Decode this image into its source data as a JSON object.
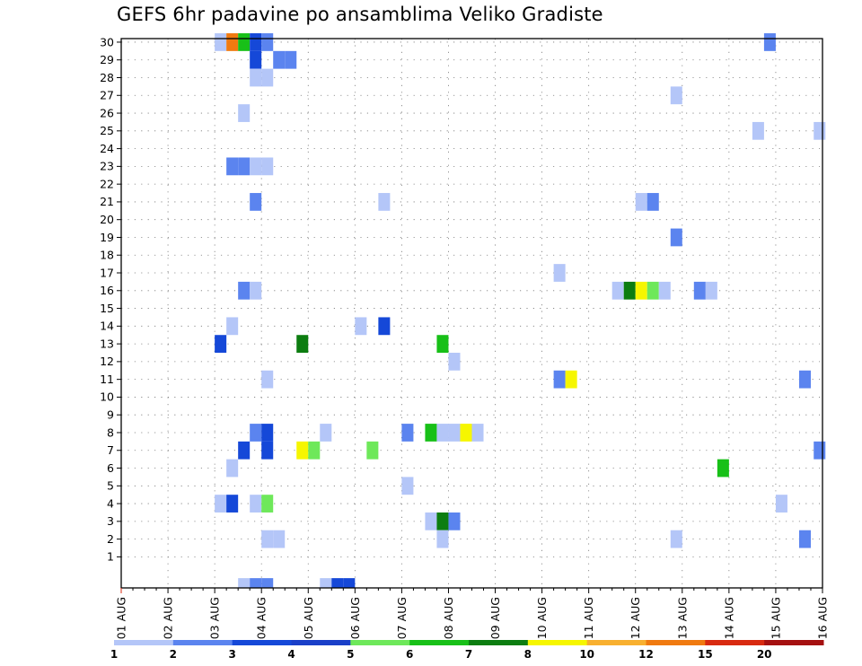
{
  "chart_data": {
    "type": "heatmap",
    "title": "GEFS 6hr padavine po ansamblima Veliko Gradiste",
    "x_labels": [
      "01 AUG",
      "02 AUG",
      "03 AUG",
      "04 AUG",
      "05 AUG",
      "06 AUG",
      "07 AUG",
      "08 AUG",
      "09 AUG",
      "10 AUG",
      "11 AUG",
      "12 AUG",
      "13 AUG",
      "14 AUG",
      "15 AUG",
      "16 AUG"
    ],
    "y_range": [
      1,
      30
    ],
    "x_steps_per_day": 4,
    "grid": true,
    "colorbar": {
      "labels": [
        "1",
        "2",
        "3",
        "4",
        "5",
        "6",
        "7",
        "8",
        "10",
        "12",
        "15",
        "20"
      ],
      "colors": [
        "#b4c6f8",
        "#5b84ef",
        "#1548d8",
        "#1a3fc8",
        "#6ee85a",
        "#18c018",
        "#0c7d10",
        "#f6f600",
        "#f8b030",
        "#f07a10",
        "#d82a10",
        "#a51010",
        "#650808"
      ]
    },
    "cells": [
      {
        "x": 8.5,
        "y": 30,
        "c": "#b4c6f8"
      },
      {
        "x": 9.5,
        "y": 30,
        "c": "#f07a10"
      },
      {
        "x": 10.5,
        "y": 30,
        "c": "#18c018"
      },
      {
        "x": 11.5,
        "y": 30,
        "c": "#1548d8"
      },
      {
        "x": 12.5,
        "y": 30,
        "c": "#5b84ef"
      },
      {
        "x": 55.5,
        "y": 30,
        "c": "#5b84ef"
      },
      {
        "x": 11.5,
        "y": 29,
        "c": "#1548d8"
      },
      {
        "x": 13.5,
        "y": 29,
        "c": "#5b84ef"
      },
      {
        "x": 14.5,
        "y": 29,
        "c": "#5b84ef"
      },
      {
        "x": 11.5,
        "y": 28,
        "c": "#b4c6f8"
      },
      {
        "x": 12.5,
        "y": 28,
        "c": "#b4c6f8"
      },
      {
        "x": 47.5,
        "y": 27,
        "c": "#b4c6f8"
      },
      {
        "x": 10.5,
        "y": 26,
        "c": "#b4c6f8"
      },
      {
        "x": 54.5,
        "y": 25,
        "c": "#b4c6f8"
      },
      {
        "x": 59.75,
        "y": 25,
        "c": "#b4c6f8"
      },
      {
        "x": 9.5,
        "y": 23,
        "c": "#5b84ef"
      },
      {
        "x": 10.5,
        "y": 23,
        "c": "#5b84ef"
      },
      {
        "x": 11.5,
        "y": 23,
        "c": "#b4c6f8"
      },
      {
        "x": 12.5,
        "y": 23,
        "c": "#b4c6f8"
      },
      {
        "x": 11.5,
        "y": 21,
        "c": "#5b84ef"
      },
      {
        "x": 22.5,
        "y": 21,
        "c": "#b4c6f8"
      },
      {
        "x": 44.5,
        "y": 21,
        "c": "#b4c6f8"
      },
      {
        "x": 45.5,
        "y": 21,
        "c": "#5b84ef"
      },
      {
        "x": 47.5,
        "y": 19,
        "c": "#5b84ef"
      },
      {
        "x": 37.5,
        "y": 17,
        "c": "#b4c6f8"
      },
      {
        "x": 42.5,
        "y": 16,
        "c": "#b4c6f8"
      },
      {
        "x": 43.5,
        "y": 16,
        "c": "#0c7d10"
      },
      {
        "x": 44.5,
        "y": 16,
        "c": "#f6f600"
      },
      {
        "x": 45.5,
        "y": 16,
        "c": "#6ee85a"
      },
      {
        "x": 46.5,
        "y": 16,
        "c": "#b4c6f8"
      },
      {
        "x": 49.5,
        "y": 16,
        "c": "#5b84ef"
      },
      {
        "x": 50.5,
        "y": 16,
        "c": "#b4c6f8"
      },
      {
        "x": 10.5,
        "y": 16,
        "c": "#5b84ef"
      },
      {
        "x": 11.5,
        "y": 16,
        "c": "#b4c6f8"
      },
      {
        "x": 9.5,
        "y": 14,
        "c": "#b4c6f8"
      },
      {
        "x": 20.5,
        "y": 14,
        "c": "#b4c6f8"
      },
      {
        "x": 22.5,
        "y": 14,
        "c": "#1548d8"
      },
      {
        "x": 8.5,
        "y": 13,
        "c": "#1548d8"
      },
      {
        "x": 15.5,
        "y": 13,
        "c": "#0c7d10"
      },
      {
        "x": 27.5,
        "y": 13,
        "c": "#18c018"
      },
      {
        "x": 28.5,
        "y": 12,
        "c": "#b4c6f8"
      },
      {
        "x": 12.5,
        "y": 11,
        "c": "#b4c6f8"
      },
      {
        "x": 37.5,
        "y": 11,
        "c": "#5b84ef"
      },
      {
        "x": 38.5,
        "y": 11,
        "c": "#f6f600"
      },
      {
        "x": 58.5,
        "y": 11,
        "c": "#5b84ef"
      },
      {
        "x": 11.5,
        "y": 8,
        "c": "#5b84ef"
      },
      {
        "x": 12.5,
        "y": 8,
        "c": "#1548d8"
      },
      {
        "x": 17.5,
        "y": 8,
        "c": "#b4c6f8"
      },
      {
        "x": 24.5,
        "y": 8,
        "c": "#5b84ef"
      },
      {
        "x": 26.5,
        "y": 8,
        "c": "#18c018"
      },
      {
        "x": 27.5,
        "y": 8,
        "c": "#b4c6f8"
      },
      {
        "x": 28.5,
        "y": 8,
        "c": "#b4c6f8"
      },
      {
        "x": 29.5,
        "y": 8,
        "c": "#f6f600"
      },
      {
        "x": 30.5,
        "y": 8,
        "c": "#b4c6f8"
      },
      {
        "x": 10.5,
        "y": 7,
        "c": "#1548d8"
      },
      {
        "x": 12.5,
        "y": 7,
        "c": "#1548d8"
      },
      {
        "x": 15.5,
        "y": 7,
        "c": "#f6f600"
      },
      {
        "x": 16.5,
        "y": 7,
        "c": "#6ee85a"
      },
      {
        "x": 21.5,
        "y": 7,
        "c": "#6ee85a"
      },
      {
        "x": 59.75,
        "y": 7,
        "c": "#5b84ef"
      },
      {
        "x": 9.5,
        "y": 6,
        "c": "#b4c6f8"
      },
      {
        "x": 51.5,
        "y": 6,
        "c": "#18c018"
      },
      {
        "x": 24.5,
        "y": 5,
        "c": "#b4c6f8"
      },
      {
        "x": 8.5,
        "y": 4,
        "c": "#b4c6f8"
      },
      {
        "x": 9.5,
        "y": 4,
        "c": "#1548d8"
      },
      {
        "x": 11.5,
        "y": 4,
        "c": "#b4c6f8"
      },
      {
        "x": 12.5,
        "y": 4,
        "c": "#6ee85a"
      },
      {
        "x": 56.5,
        "y": 4,
        "c": "#b4c6f8"
      },
      {
        "x": 26.5,
        "y": 3,
        "c": "#b4c6f8"
      },
      {
        "x": 27.5,
        "y": 3,
        "c": "#0c7d10"
      },
      {
        "x": 28.5,
        "y": 3,
        "c": "#5b84ef"
      },
      {
        "x": 12.5,
        "y": 2,
        "c": "#b4c6f8"
      },
      {
        "x": 13.5,
        "y": 2,
        "c": "#b4c6f8"
      },
      {
        "x": 27.5,
        "y": 2,
        "c": "#b4c6f8"
      },
      {
        "x": 47.5,
        "y": 2,
        "c": "#b4c6f8"
      },
      {
        "x": 58.5,
        "y": 2,
        "c": "#5b84ef"
      }
    ],
    "bottom_cells": [
      {
        "x": 10.5,
        "c": "#b4c6f8"
      },
      {
        "x": 11.5,
        "c": "#5b84ef"
      },
      {
        "x": 12.5,
        "c": "#5b84ef"
      },
      {
        "x": 17.5,
        "c": "#b4c6f8"
      },
      {
        "x": 18.5,
        "c": "#1548d8"
      },
      {
        "x": 19.5,
        "c": "#1548d8"
      }
    ]
  }
}
